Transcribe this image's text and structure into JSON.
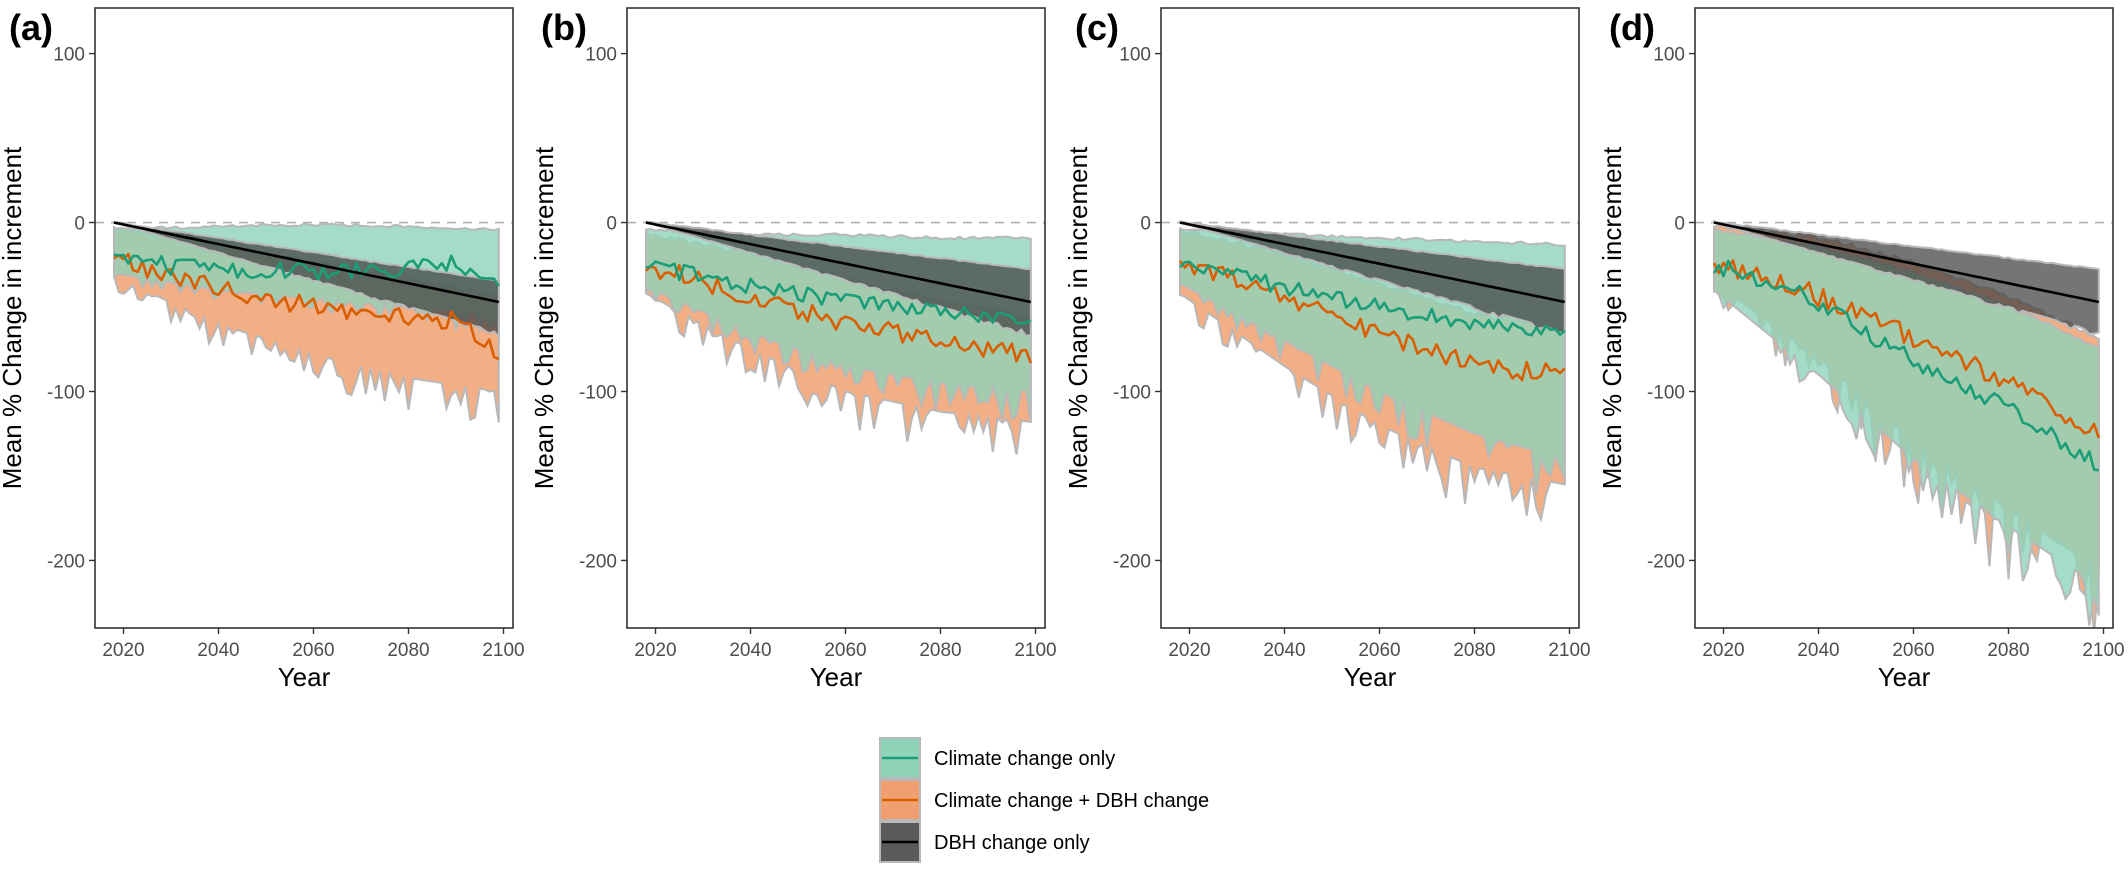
{
  "chart_data": [
    {
      "panel": "(a)",
      "type": "line",
      "xlabel": "Year",
      "ylabel": "Mean % Change in increment",
      "xlim": [
        2014,
        2102
      ],
      "ylim": [
        -240,
        127
      ],
      "xticks": [
        2020,
        2040,
        2060,
        2080,
        2100
      ],
      "yticks": [
        100,
        0,
        -100,
        -200
      ],
      "reference_line": 0,
      "series": [
        {
          "name": "Climate change only",
          "start_year": 2018,
          "end_year": 2099,
          "anchors": [
            [
              2018,
              -18
            ],
            [
              2030,
              -26
            ],
            [
              2045,
              -28
            ],
            [
              2060,
              -29
            ],
            [
              2075,
              -28
            ],
            [
              2090,
              -24
            ],
            [
              2099,
              -35
            ]
          ],
          "band_upper": [
            [
              2018,
              -5
            ],
            [
              2040,
              -3
            ],
            [
              2060,
              -2
            ],
            [
              2080,
              -3
            ],
            [
              2099,
              -5
            ]
          ],
          "band_lower": [
            [
              2018,
              -30
            ],
            [
              2040,
              -40
            ],
            [
              2060,
              -45
            ],
            [
              2080,
              -50
            ],
            [
              2099,
              -55
            ]
          ]
        },
        {
          "name": "Climate change + DBH change",
          "start_year": 2018,
          "end_year": 2099,
          "anchors": [
            [
              2018,
              -18
            ],
            [
              2030,
              -33
            ],
            [
              2045,
              -42
            ],
            [
              2060,
              -50
            ],
            [
              2075,
              -56
            ],
            [
              2090,
              -58
            ],
            [
              2099,
              -76
            ]
          ],
          "band_upper": [
            [
              2018,
              -5
            ],
            [
              2040,
              -15
            ],
            [
              2060,
              -25
            ],
            [
              2080,
              -35
            ],
            [
              2099,
              -45
            ]
          ],
          "band_lower": [
            [
              2018,
              -32
            ],
            [
              2040,
              -60
            ],
            [
              2060,
              -78
            ],
            [
              2080,
              -92
            ],
            [
              2099,
              -100
            ]
          ]
        },
        {
          "name": "DBH change only",
          "start_year": 2018,
          "end_year": 2099,
          "anchors": [
            [
              2018,
              0
            ],
            [
              2099,
              -47
            ]
          ],
          "band_upper": [
            [
              2018,
              0
            ],
            [
              2099,
              -35
            ]
          ],
          "band_lower": [
            [
              2018,
              0
            ],
            [
              2099,
              -65
            ]
          ]
        }
      ]
    },
    {
      "panel": "(b)",
      "type": "line",
      "xlabel": "Year",
      "ylabel": "Mean % Change in increment",
      "xlim": [
        2014,
        2102
      ],
      "ylim": [
        -240,
        127
      ],
      "xticks": [
        2020,
        2040,
        2060,
        2080,
        2100
      ],
      "yticks": [
        100,
        0,
        -100,
        -200
      ],
      "reference_line": 0,
      "series": [
        {
          "name": "Climate change only",
          "start_year": 2018,
          "end_year": 2099,
          "anchors": [
            [
              2018,
              -25
            ],
            [
              2035,
              -35
            ],
            [
              2050,
              -42
            ],
            [
              2065,
              -47
            ],
            [
              2080,
              -52
            ],
            [
              2099,
              -57
            ]
          ],
          "band_upper": [
            [
              2018,
              -5
            ],
            [
              2040,
              -8
            ],
            [
              2060,
              -8
            ],
            [
              2080,
              -10
            ],
            [
              2099,
              -10
            ]
          ],
          "band_lower": [
            [
              2018,
              -38
            ],
            [
              2040,
              -65
            ],
            [
              2060,
              -85
            ],
            [
              2080,
              -95
            ],
            [
              2099,
              -100
            ]
          ]
        },
        {
          "name": "Climate change + DBH change",
          "start_year": 2018,
          "end_year": 2099,
          "anchors": [
            [
              2018,
              -25
            ],
            [
              2035,
              -40
            ],
            [
              2050,
              -52
            ],
            [
              2065,
              -62
            ],
            [
              2080,
              -72
            ],
            [
              2099,
              -79
            ]
          ],
          "band_upper": [
            [
              2018,
              -8
            ],
            [
              2040,
              -20
            ],
            [
              2060,
              -35
            ],
            [
              2080,
              -48
            ],
            [
              2099,
              -58
            ]
          ],
          "band_lower": [
            [
              2018,
              -42
            ],
            [
              2040,
              -75
            ],
            [
              2060,
              -100
            ],
            [
              2080,
              -112
            ],
            [
              2099,
              -118
            ]
          ]
        },
        {
          "name": "DBH change only",
          "start_year": 2018,
          "end_year": 2099,
          "anchors": [
            [
              2018,
              0
            ],
            [
              2099,
              -47
            ]
          ],
          "band_upper": [
            [
              2018,
              0
            ],
            [
              2099,
              -28
            ]
          ],
          "band_lower": [
            [
              2018,
              0
            ],
            [
              2099,
              -65
            ]
          ]
        }
      ]
    },
    {
      "panel": "(c)",
      "type": "line",
      "xlabel": "Year",
      "ylabel": "Mean % Change in increment",
      "xlim": [
        2014,
        2102
      ],
      "ylim": [
        -240,
        127
      ],
      "xticks": [
        2020,
        2040,
        2060,
        2080,
        2100
      ],
      "yticks": [
        100,
        0,
        -100,
        -200
      ],
      "reference_line": 0,
      "series": [
        {
          "name": "Climate change only",
          "start_year": 2018,
          "end_year": 2099,
          "anchors": [
            [
              2018,
              -22
            ],
            [
              2035,
              -35
            ],
            [
              2050,
              -45
            ],
            [
              2065,
              -53
            ],
            [
              2080,
              -60
            ],
            [
              2099,
              -65
            ]
          ],
          "band_upper": [
            [
              2018,
              -5
            ],
            [
              2040,
              -8
            ],
            [
              2060,
              -10
            ],
            [
              2080,
              -12
            ],
            [
              2099,
              -14
            ]
          ],
          "band_lower": [
            [
              2018,
              -36
            ],
            [
              2040,
              -70
            ],
            [
              2060,
              -100
            ],
            [
              2080,
              -125
            ],
            [
              2099,
              -140
            ]
          ]
        },
        {
          "name": "Climate change + DBH change",
          "start_year": 2018,
          "end_year": 2099,
          "anchors": [
            [
              2018,
              -22
            ],
            [
              2035,
              -40
            ],
            [
              2050,
              -55
            ],
            [
              2065,
              -70
            ],
            [
              2080,
              -85
            ],
            [
              2099,
              -90
            ]
          ],
          "band_upper": [
            [
              2018,
              -6
            ],
            [
              2040,
              -20
            ],
            [
              2060,
              -38
            ],
            [
              2080,
              -55
            ],
            [
              2099,
              -65
            ]
          ],
          "band_lower": [
            [
              2018,
              -42
            ],
            [
              2040,
              -85
            ],
            [
              2060,
              -120
            ],
            [
              2080,
              -145
            ],
            [
              2099,
              -155
            ]
          ]
        },
        {
          "name": "DBH change only",
          "start_year": 2018,
          "end_year": 2099,
          "anchors": [
            [
              2018,
              0
            ],
            [
              2099,
              -47
            ]
          ],
          "band_upper": [
            [
              2018,
              0
            ],
            [
              2099,
              -28
            ]
          ],
          "band_lower": [
            [
              2018,
              0
            ],
            [
              2099,
              -65
            ]
          ]
        }
      ]
    },
    {
      "panel": "(d)",
      "type": "line",
      "xlabel": "Year",
      "ylabel": "Mean % Change in increment",
      "xlim": [
        2014,
        2102
      ],
      "ylim": [
        -240,
        127
      ],
      "xticks": [
        2020,
        2040,
        2060,
        2080,
        2100
      ],
      "yticks": [
        100,
        0,
        -100,
        -200
      ],
      "reference_line": 0,
      "series": [
        {
          "name": "Climate change only",
          "start_year": 2018,
          "end_year": 2099,
          "anchors": [
            [
              2018,
              -25
            ],
            [
              2035,
              -40
            ],
            [
              2050,
              -65
            ],
            [
              2065,
              -90
            ],
            [
              2080,
              -110
            ],
            [
              2099,
              -143
            ]
          ],
          "band_upper": [
            [
              2018,
              -5
            ],
            [
              2040,
              -15
            ],
            [
              2060,
              -30
            ],
            [
              2080,
              -50
            ],
            [
              2099,
              -75
            ]
          ],
          "band_lower": [
            [
              2018,
              -40
            ],
            [
              2040,
              -90
            ],
            [
              2060,
              -140
            ],
            [
              2080,
              -180
            ],
            [
              2099,
              -215
            ]
          ]
        },
        {
          "name": "Climate change + DBH change",
          "start_year": 2018,
          "end_year": 2099,
          "anchors": [
            [
              2018,
              -25
            ],
            [
              2035,
              -38
            ],
            [
              2050,
              -55
            ],
            [
              2065,
              -75
            ],
            [
              2080,
              -95
            ],
            [
              2099,
              -125
            ]
          ],
          "band_upper": [
            [
              2018,
              -3
            ],
            [
              2040,
              -10
            ],
            [
              2060,
              -25
            ],
            [
              2080,
              -45
            ],
            [
              2099,
              -70
            ]
          ],
          "band_lower": [
            [
              2018,
              -35
            ],
            [
              2040,
              -80
            ],
            [
              2060,
              -130
            ],
            [
              2080,
              -170
            ],
            [
              2099,
              -205
            ]
          ]
        },
        {
          "name": "DBH change only",
          "start_year": 2018,
          "end_year": 2099,
          "anchors": [
            [
              2018,
              0
            ],
            [
              2099,
              -47
            ]
          ],
          "band_upper": [
            [
              2018,
              0
            ],
            [
              2099,
              -28
            ]
          ],
          "band_lower": [
            [
              2018,
              0
            ],
            [
              2099,
              -65
            ]
          ]
        }
      ]
    }
  ],
  "legend": {
    "placement": "bottom-center",
    "items": [
      {
        "label": "Climate change only",
        "line_color": "#1b9e77",
        "fill_color": "#8fd3b9"
      },
      {
        "label": "Climate change + DBH change",
        "line_color": "#d95f02",
        "fill_color": "#f0a070"
      },
      {
        "label": "DBH change only",
        "line_color": "#000000",
        "fill_color": "#5a5a5a"
      }
    ]
  },
  "colors": {
    "climate_line": "#1b9e77",
    "climate_fill": "#8fd3b9",
    "combined_line": "#d95f02",
    "combined_fill": "#f0a070",
    "dbh_line": "#000000",
    "dbh_fill": "#404040",
    "band_outline": "#b8b8b8",
    "reference_line": "#b0b0b0"
  }
}
